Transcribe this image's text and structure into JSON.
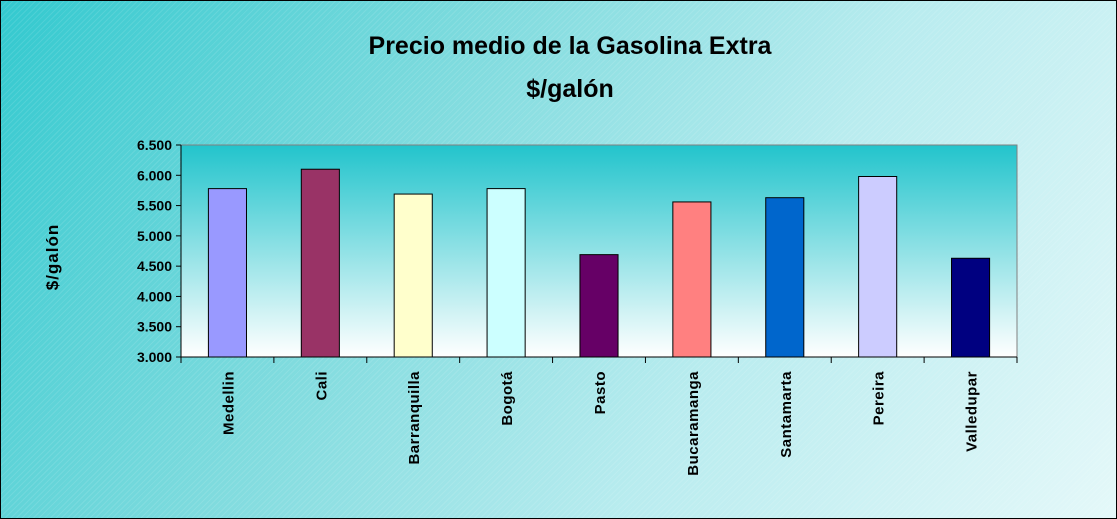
{
  "chart_data": {
    "type": "bar",
    "title": "Precio medio de la Gasolina Extra",
    "subtitle": "$/galón",
    "xlabel": "",
    "ylabel": "$/galón",
    "ylim": [
      3000,
      6500
    ],
    "yticks": [
      "3.000",
      "3.500",
      "4.000",
      "4.500",
      "5.000",
      "5.500",
      "6.000",
      "6.500"
    ],
    "grid": false,
    "legend": "none",
    "categories": [
      "Medellin",
      "Cali",
      "Barranquilla",
      "Bogotá",
      "Pasto",
      "Bucaramanga",
      "Santamarta",
      "Pereira",
      "Valledupar"
    ],
    "values": [
      5780,
      6100,
      5690,
      5780,
      4690,
      5560,
      5630,
      5980,
      4630
    ],
    "colors": [
      "#9999ff",
      "#993366",
      "#ffffcc",
      "#ccffff",
      "#660066",
      "#ff8080",
      "#0066cc",
      "#ccccff",
      "#000080"
    ],
    "plot_background": [
      "#22c4cc",
      "#ffffff"
    ]
  }
}
